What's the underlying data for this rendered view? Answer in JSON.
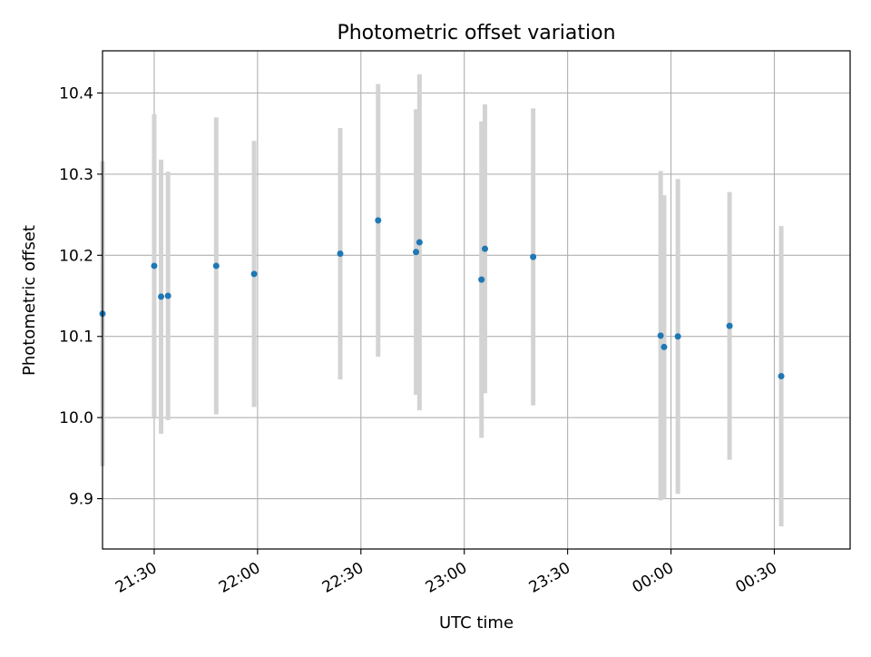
{
  "chart_data": {
    "type": "scatter",
    "title": "Photometric offset variation",
    "xlabel": "UTC time",
    "ylabel": "Photometric offset",
    "x_is_time": true,
    "xlim": [
      "21:15",
      "00:52"
    ],
    "ylim": [
      9.838,
      10.452
    ],
    "x_ticks": [
      "21:30",
      "22:00",
      "22:30",
      "23:00",
      "23:30",
      "00:00",
      "00:30"
    ],
    "y_ticks": [
      9.9,
      10.0,
      10.1,
      10.2,
      10.3,
      10.4
    ],
    "y_tick_labels": [
      "9.9",
      "10.0",
      "10.1",
      "10.2",
      "10.3",
      "10.4"
    ],
    "grid": true,
    "point_color": "#1f77b4",
    "errorbar_color": "#d3d3d3",
    "series": [
      {
        "points": [
          {
            "x": "21:15",
            "y": 10.128,
            "err": 0.188
          },
          {
            "x": "21:30",
            "y": 10.187,
            "err": 0.187
          },
          {
            "x": "21:32",
            "y": 10.149,
            "err": 0.169
          },
          {
            "x": "21:34",
            "y": 10.15,
            "err": 0.153
          },
          {
            "x": "21:48",
            "y": 10.187,
            "err": 0.183
          },
          {
            "x": "21:59",
            "y": 10.177,
            "err": 0.164
          },
          {
            "x": "22:24",
            "y": 10.202,
            "err": 0.155
          },
          {
            "x": "22:35",
            "y": 10.243,
            "err": 0.168
          },
          {
            "x": "22:46",
            "y": 10.204,
            "err": 0.176
          },
          {
            "x": "22:47",
            "y": 10.216,
            "err": 0.207
          },
          {
            "x": "23:05",
            "y": 10.17,
            "err": 0.195
          },
          {
            "x": "23:06",
            "y": 10.208,
            "err": 0.178
          },
          {
            "x": "23:20",
            "y": 10.198,
            "err": 0.183
          },
          {
            "x": "23:57",
            "y": 10.101,
            "err": 0.203
          },
          {
            "x": "23:58",
            "y": 10.087,
            "err": 0.187
          },
          {
            "x": "00:02",
            "y": 10.1,
            "err": 0.194
          },
          {
            "x": "00:17",
            "y": 10.113,
            "err": 0.165
          },
          {
            "x": "00:32",
            "y": 10.051,
            "err": 0.185
          }
        ]
      }
    ]
  }
}
